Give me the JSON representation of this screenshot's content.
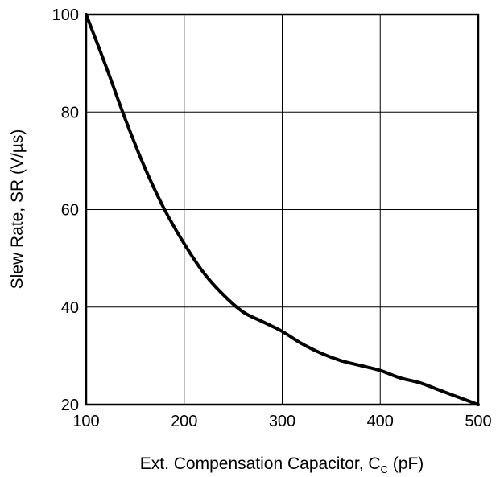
{
  "chart_data": {
    "type": "line",
    "xlabel": "Ext. Compensation Capacitor, C",
    "xlabel_subscript": "C",
    "xlabel_unit": " (pF)",
    "ylabel": "Slew Rate, SR  (V/µs)",
    "xlim": [
      100,
      500
    ],
    "ylim": [
      20,
      100
    ],
    "xticks": [
      100,
      200,
      300,
      400,
      500
    ],
    "yticks": [
      20,
      40,
      60,
      80,
      100
    ],
    "xtick_labels": [
      "100",
      "200",
      "300",
      "400",
      "500"
    ],
    "ytick_labels": [
      "20",
      "40",
      "60",
      "80",
      "100"
    ],
    "grid": true,
    "series": [
      {
        "x": [
          100,
          120,
          140,
          160,
          180,
          200,
          220,
          240,
          260,
          280,
          300,
          320,
          340,
          360,
          380,
          400,
          420,
          440,
          460,
          480,
          500
        ],
        "y": [
          100,
          89.5,
          78.5,
          68.5,
          60,
          53,
          47,
          42.5,
          39,
          37,
          35,
          32.5,
          30.5,
          29,
          28,
          27,
          25.5,
          24.5,
          23,
          21.5,
          20
        ]
      }
    ],
    "colors": {
      "line": "#000000",
      "grid": "#000000",
      "frame": "#000000"
    }
  }
}
